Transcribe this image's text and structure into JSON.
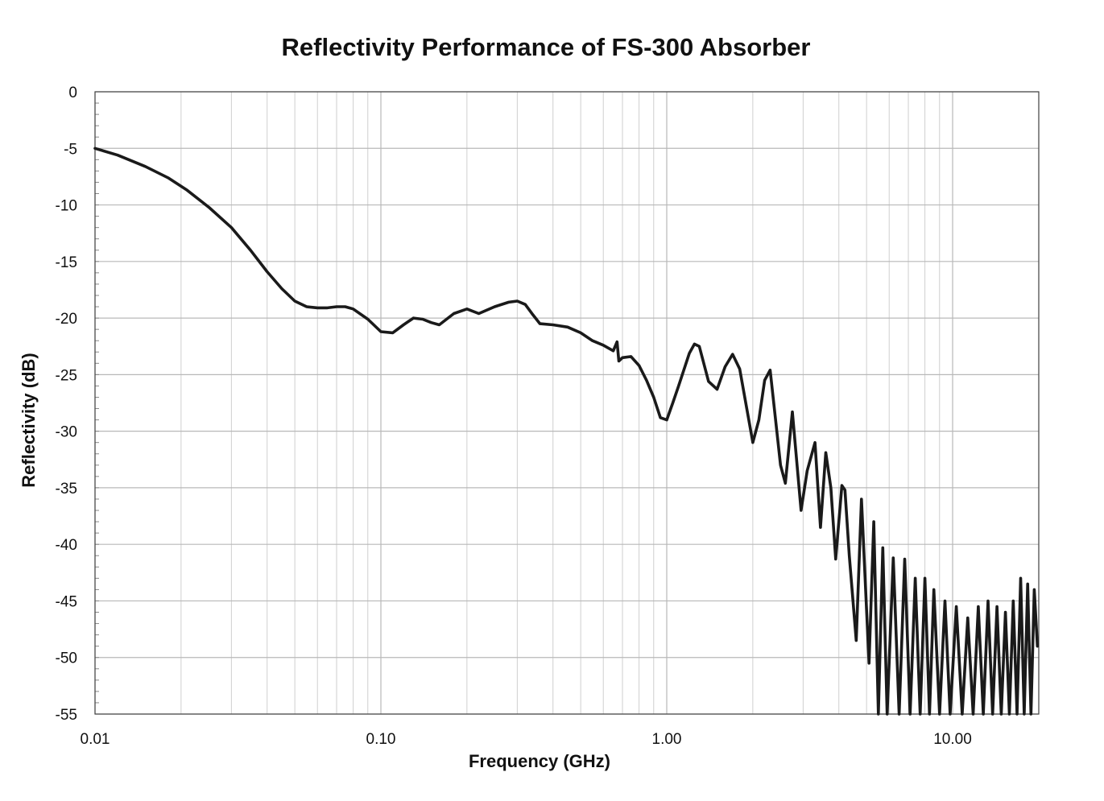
{
  "chart_data": {
    "type": "line",
    "title": "Reflectivity Performance of FS-300 Absorber",
    "xlabel": "Frequency (GHz)",
    "ylabel": "Reflectivity (dB)",
    "x_scale": "log",
    "xlim": [
      0.01,
      20
    ],
    "ylim": [
      -55,
      0
    ],
    "x_ticks": [
      0.01,
      0.1,
      1,
      10
    ],
    "x_tick_labels": [
      "0.01",
      "0.10",
      "1.00",
      "10.00"
    ],
    "y_ticks": [
      0,
      -5,
      -10,
      -15,
      -20,
      -25,
      -30,
      -35,
      -40,
      -45,
      -50,
      -55
    ],
    "y_tick_labels": [
      "0",
      "-5",
      "-10",
      "-15",
      "-20",
      "-25",
      "-30",
      "-35",
      "-40",
      "-45",
      "-50",
      "-55"
    ],
    "grid": true,
    "legend": "none",
    "line_color": "#1a1a1a",
    "series": [
      {
        "x": [
          0.01,
          0.012,
          0.015,
          0.018,
          0.021,
          0.025,
          0.03,
          0.035,
          0.04,
          0.045,
          0.05,
          0.055,
          0.06,
          0.065,
          0.07,
          0.075,
          0.08,
          0.09,
          0.1,
          0.11,
          0.12,
          0.13,
          0.14,
          0.15,
          0.16,
          0.18,
          0.2,
          0.22,
          0.25,
          0.28,
          0.3,
          0.32,
          0.34,
          0.36,
          0.4,
          0.45,
          0.5,
          0.55,
          0.6,
          0.65,
          0.67,
          0.68,
          0.7,
          0.75,
          0.8,
          0.85,
          0.9,
          0.95,
          1.0,
          1.05,
          1.1,
          1.2,
          1.25,
          1.3,
          1.4,
          1.5,
          1.6,
          1.7,
          1.8,
          2.0,
          2.1,
          2.2,
          2.3,
          2.5,
          2.6,
          2.75,
          2.95,
          3.1,
          3.3,
          3.45,
          3.6,
          3.75,
          3.9,
          4.1,
          4.2,
          4.35,
          4.6,
          4.8,
          5.1,
          5.3,
          5.5,
          5.7,
          5.9,
          6.2,
          6.5,
          6.8,
          7.1,
          7.4,
          7.7,
          8.0,
          8.3,
          8.6,
          9.0,
          9.4,
          9.8,
          10.3,
          10.8,
          11.3,
          11.8,
          12.3,
          12.8,
          13.3,
          13.8,
          14.3,
          14.8,
          15.3,
          15.8,
          16.3,
          16.8,
          17.3,
          17.8,
          18.3,
          18.8,
          19.3,
          19.8
        ],
        "y": [
          -5.0,
          -5.6,
          -6.6,
          -7.6,
          -8.7,
          -10.2,
          -12.0,
          -14.0,
          -15.9,
          -17.4,
          -18.5,
          -19.0,
          -19.1,
          -19.1,
          -19.0,
          -19.0,
          -19.2,
          -20.1,
          -21.2,
          -21.3,
          -20.6,
          -20.0,
          -20.1,
          -20.4,
          -20.6,
          -19.6,
          -19.2,
          -19.6,
          -19.0,
          -18.6,
          -18.5,
          -18.8,
          -19.7,
          -20.5,
          -20.6,
          -20.8,
          -21.3,
          -22.0,
          -22.4,
          -22.9,
          -22.1,
          -23.8,
          -23.5,
          -23.4,
          -24.2,
          -25.5,
          -27.0,
          -28.8,
          -29.0,
          -27.5,
          -26.0,
          -23.1,
          -22.3,
          -22.5,
          -25.6,
          -26.3,
          -24.3,
          -23.2,
          -24.5,
          -31.0,
          -29.0,
          -25.5,
          -24.6,
          -33.0,
          -34.6,
          -28.3,
          -37.0,
          -33.5,
          -31.0,
          -38.5,
          -31.9,
          -35.0,
          -41.3,
          -34.8,
          -35.2,
          -41.0,
          -48.5,
          -36.0,
          -50.5,
          -38.0,
          -55.0,
          -40.3,
          -55.0,
          -41.2,
          -55.0,
          -41.3,
          -55.0,
          -43.0,
          -55.0,
          -43.0,
          -55.0,
          -44.0,
          -55.0,
          -45.0,
          -55.0,
          -45.5,
          -55.0,
          -46.5,
          -55.0,
          -45.5,
          -55.0,
          -45.0,
          -55.0,
          -45.5,
          -55.0,
          -46.0,
          -55.0,
          -45.0,
          -55.0,
          -43.0,
          -55.0,
          -43.5,
          -55.0,
          -44.0,
          -49.0
        ]
      }
    ]
  }
}
